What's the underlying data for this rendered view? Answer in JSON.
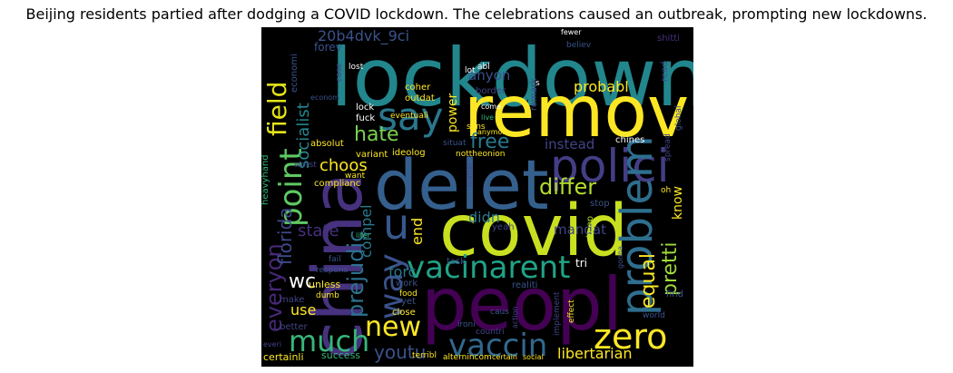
{
  "title": "Beijing residents partied after dodging a COVID lockdown. The celebrations caused an outbreak, prompting new lockdowns.",
  "colors": {
    "background": "#ffffff",
    "cloud_background": "#000000",
    "palette": [
      "#440154",
      "#46327e",
      "#365c8d",
      "#277f8e",
      "#1fa187",
      "#4ac16d",
      "#a0da39",
      "#fde725"
    ]
  },
  "words": {
    "lockdown": "lockdown",
    "remov": "remov",
    "china": "china",
    "delet": "delet",
    "covid": "covid",
    "peopl": "peopl",
    "polici": "polici",
    "problem": "problem",
    "say": "say",
    "point": "point",
    "field": "field",
    "u": "u",
    "vacinarent": "vacinarent",
    "zero": "zero",
    "much": "much",
    "vaccin": "vaccin",
    "new": "new",
    "way": "way",
    "hate": "hate",
    "free": "free",
    "differ": "differ",
    "equal": "equal",
    "pretti": "pretti",
    "everyon": "everyon",
    "prejudic": "prejudic",
    "florida": "florida",
    "socialist": "socialist",
    "choos": "choos",
    "wc": "wc",
    "use": "use",
    "youtu": "youtu",
    "libertarian": "libertarian",
    "state": "state",
    "compel": "compel",
    "forc": "forc",
    "mandat": "mandat",
    "didn": "didn",
    "end": "end",
    "know": "know",
    "instead": "instead",
    "probabl": "probabl",
    "anyon": "anyon",
    "power": "power",
    "20b4dvk_9ci": "20b4dvk_9ci",
    "forev": "forev",
    "border": "border",
    "remark": "remark",
    "shitti": "shitti",
    "coher": "coher",
    "outdat": "outdat",
    "eventuali": "eventuali",
    "lock": "lock",
    "fuck": "fuck",
    "absolut": "absolut",
    "variant": "variant",
    "ideolog": "ideolog",
    "complianc": "complianc",
    "want": "want",
    "heavyhand": "heavyhand",
    "worst": "worst",
    "economi": "economi",
    "econom": "econom",
    "lost": "lost",
    "abl": "abl",
    "lot": "lot",
    "fewer": "fewer",
    "believ": "believ",
    "read": "read",
    "sens": "sens",
    "live": "live",
    "anymor": "anymor",
    "come": "come",
    "situat": "situat",
    "chines": "chines",
    "nottheonion": "nottheonion",
    "global": "global",
    "spread": "spread",
    "matter": "matter",
    "oh": "oh",
    "stop": "stop",
    "keep": "keep",
    "yeah": "yeah",
    "tri": "tri",
    "task": "task",
    "liter": "liter",
    "gonna": "gonna",
    "respons": "respons",
    "fail": "fail",
    "implement": "implement",
    "unless": "unless",
    "work": "work",
    "food": "food",
    "realiti": "realiti",
    "find": "find",
    "make": "make",
    "dumb": "dumb",
    "yet": "yet",
    "caus": "caus",
    "action": "action",
    "effect": "effect",
    "better": "better",
    "close": "close",
    "ironi": "ironi",
    "countri": "countri",
    "world": "world",
    "everi": "everi",
    "certainli": "certainli",
    "success": "success",
    "terribl": "terribl",
    "alternincom": "alternincom",
    "certain": "certain",
    "social": "social",
    "case": "case",
    "s": "s"
  }
}
